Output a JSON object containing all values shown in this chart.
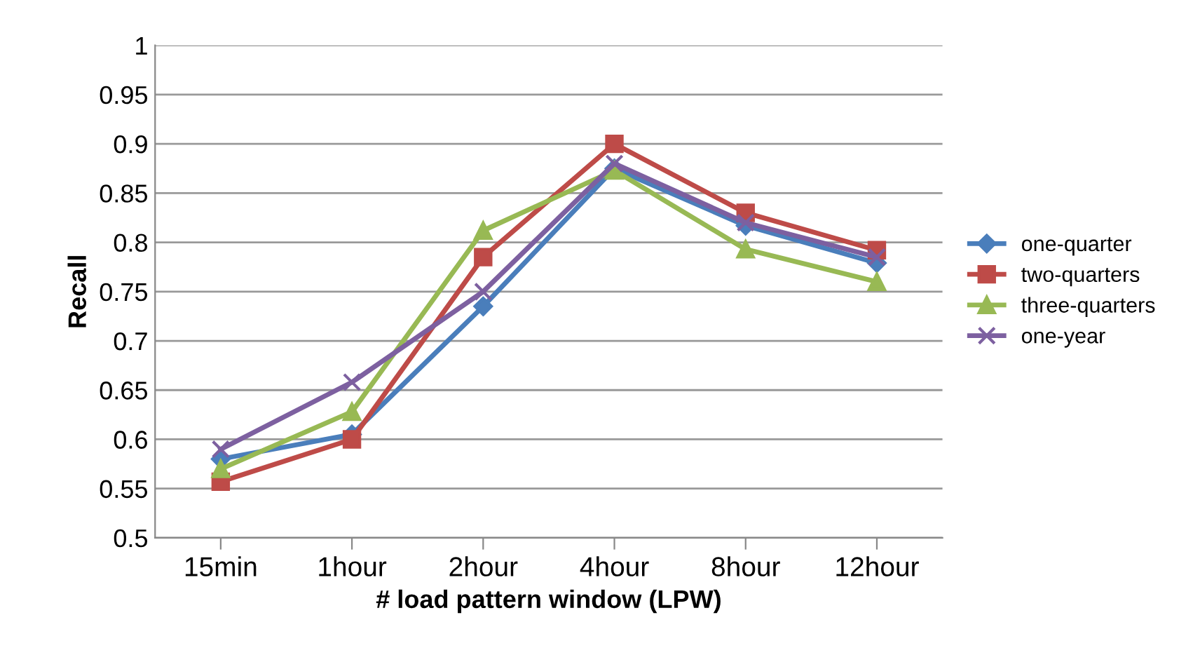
{
  "chart_data": {
    "type": "line",
    "xlabel": "# load pattern window (LPW)",
    "ylabel": "Recall",
    "categories": [
      "15min",
      "1hour",
      "2hour",
      "4hour",
      "8hour",
      "12hour"
    ],
    "series": [
      {
        "name": "one-quarter",
        "color": "#4a7ebb",
        "marker": "diamond",
        "values": [
          0.58,
          0.605,
          0.735,
          0.875,
          0.817,
          0.779
        ]
      },
      {
        "name": "two-quarters",
        "color": "#be4b48",
        "marker": "square",
        "values": [
          0.557,
          0.6,
          0.785,
          0.9,
          0.83,
          0.792
        ]
      },
      {
        "name": "three-quarters",
        "color": "#98b954",
        "marker": "triangle",
        "values": [
          0.57,
          0.628,
          0.812,
          0.873,
          0.793,
          0.76
        ]
      },
      {
        "name": "one-year",
        "color": "#7d60a0",
        "marker": "cross",
        "values": [
          0.59,
          0.658,
          0.75,
          0.88,
          0.82,
          0.785
        ]
      }
    ],
    "ylim": [
      0.5,
      1
    ],
    "yticks": [
      0.5,
      0.55,
      0.6,
      0.65,
      0.7,
      0.75,
      0.8,
      0.85,
      0.9,
      0.95,
      1
    ],
    "grid": "y",
    "legend": "right",
    "line_style": "solid"
  }
}
